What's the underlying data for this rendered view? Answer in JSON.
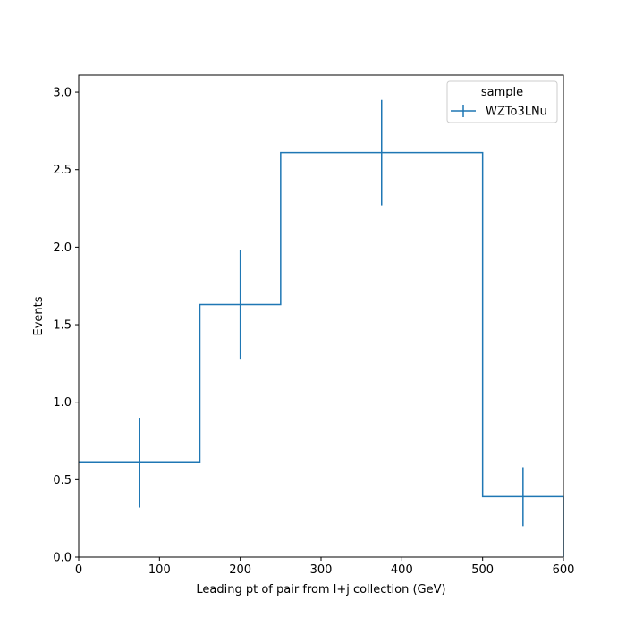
{
  "chart_data": {
    "type": "histogram-step",
    "bins": [
      {
        "low": 0,
        "high": 150,
        "value": 0.61,
        "err": 0.29
      },
      {
        "low": 150,
        "high": 250,
        "value": 1.63,
        "err": 0.35
      },
      {
        "low": 250,
        "high": 500,
        "value": 2.61,
        "err": 0.34
      },
      {
        "low": 500,
        "high": 600,
        "value": 0.39,
        "err": 0.19
      }
    ],
    "xlabel": "Leading pt of pair from l+j collection (GeV)",
    "ylabel": "Events",
    "xlim": [
      0,
      600
    ],
    "ylim": [
      0,
      3.11
    ],
    "xticks": [
      0,
      100,
      200,
      300,
      400,
      500,
      600
    ],
    "yticks": [
      0.0,
      0.5,
      1.0,
      1.5,
      2.0,
      2.5,
      3.0
    ],
    "xtick_labels": [
      "0",
      "100",
      "200",
      "300",
      "400",
      "500",
      "600"
    ],
    "ytick_labels": [
      "0.0",
      "0.5",
      "1.0",
      "1.5",
      "2.0",
      "2.5",
      "3.0"
    ],
    "grid": false,
    "legend": {
      "title": "sample",
      "placement": "top-right",
      "entries": [
        {
          "name": "WZTo3LNu",
          "color": "#1f77b4"
        }
      ]
    },
    "series_color": "#1f77b4"
  }
}
